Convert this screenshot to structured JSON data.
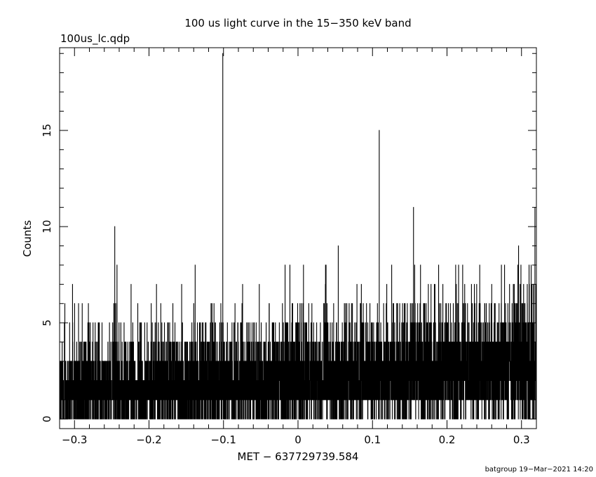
{
  "chart_data": {
    "type": "line",
    "title": "100 us light curve in the 15−350 keV band",
    "subtitle": "100us_lc.qdp",
    "xlabel": "MET − 637729739.584",
    "ylabel": "Counts",
    "footer": "batgroup 19−Mar−2021 14:20",
    "xlim": [
      -0.32,
      0.32
    ],
    "ylim": [
      -0.5,
      19.3
    ],
    "x_ticks": [
      -0.3,
      -0.2,
      -0.1,
      0,
      0.1,
      0.2,
      0.3
    ],
    "x_tick_labels": [
      "−0.3",
      "−0.2",
      "−0.1",
      "0",
      "0.1",
      "0.2",
      "0.3"
    ],
    "y_ticks": [
      0,
      5,
      10,
      15
    ],
    "y_tick_labels": [
      "0",
      "5",
      "10",
      "15"
    ],
    "bin_width": 0.0001,
    "mean_count_rate_trend": {
      "x": [
        -0.32,
        -0.2,
        -0.1,
        0,
        0.1,
        0.2,
        0.32
      ],
      "y": [
        1.6,
        1.7,
        1.9,
        2.1,
        2.4,
        2.6,
        2.8
      ]
    },
    "notable_bins": [
      {
        "x": -0.101,
        "y": 19
      },
      {
        "x": 0.109,
        "y": 15
      },
      {
        "x": -0.246,
        "y": 10
      },
      {
        "x": 0.155,
        "y": 11
      },
      {
        "x": 0.318,
        "y": 11
      },
      {
        "x": 0.296,
        "y": 9
      },
      {
        "x": 0.054,
        "y": 9
      },
      {
        "x": 0.037,
        "y": 8
      },
      {
        "x": -0.138,
        "y": 8
      },
      {
        "x": 0.221,
        "y": 8
      },
      {
        "x": -0.243,
        "y": 8
      },
      {
        "x": -0.052,
        "y": 7
      },
      {
        "x": 0.085,
        "y": 7
      },
      {
        "x": -0.19,
        "y": 7
      },
      {
        "x": 0.183,
        "y": 7
      },
      {
        "x": 0.26,
        "y": 7
      }
    ],
    "grid": false,
    "legend": "none"
  }
}
